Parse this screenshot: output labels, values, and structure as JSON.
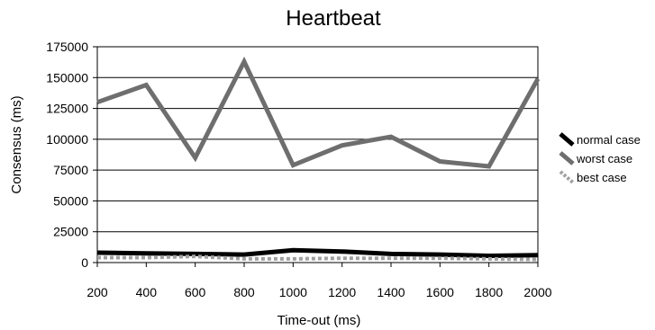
{
  "chart_data": {
    "type": "line",
    "title": "Heartbeat",
    "xlabel": "Time-out (ms)",
    "ylabel": "Consensus (ms)",
    "categories": [
      "200",
      "400",
      "600",
      "800",
      "1000",
      "1200",
      "1400",
      "1600",
      "1800",
      "2000"
    ],
    "ylim": [
      0,
      175000
    ],
    "yticks": [
      "0",
      "25000",
      "50000",
      "75000",
      "100000",
      "125000",
      "150000",
      "175000"
    ],
    "grid": "horizontal",
    "legend_position": "right",
    "series": [
      {
        "name": "normal case",
        "color": "#000000",
        "style": "solid",
        "values": [
          8000,
          7500,
          7000,
          6500,
          10000,
          9000,
          7000,
          6500,
          5500,
          6000
        ]
      },
      {
        "name": "worst case",
        "color": "#6e6e6e",
        "style": "solid",
        "values": [
          130000,
          144000,
          85000,
          163000,
          79000,
          95000,
          102000,
          82000,
          78000,
          149000
        ]
      },
      {
        "name": "best case",
        "color": "#a0a0a0",
        "style": "dotted",
        "values": [
          4000,
          4000,
          5000,
          3000,
          3000,
          3500,
          3500,
          3500,
          3000,
          2500
        ]
      }
    ]
  }
}
